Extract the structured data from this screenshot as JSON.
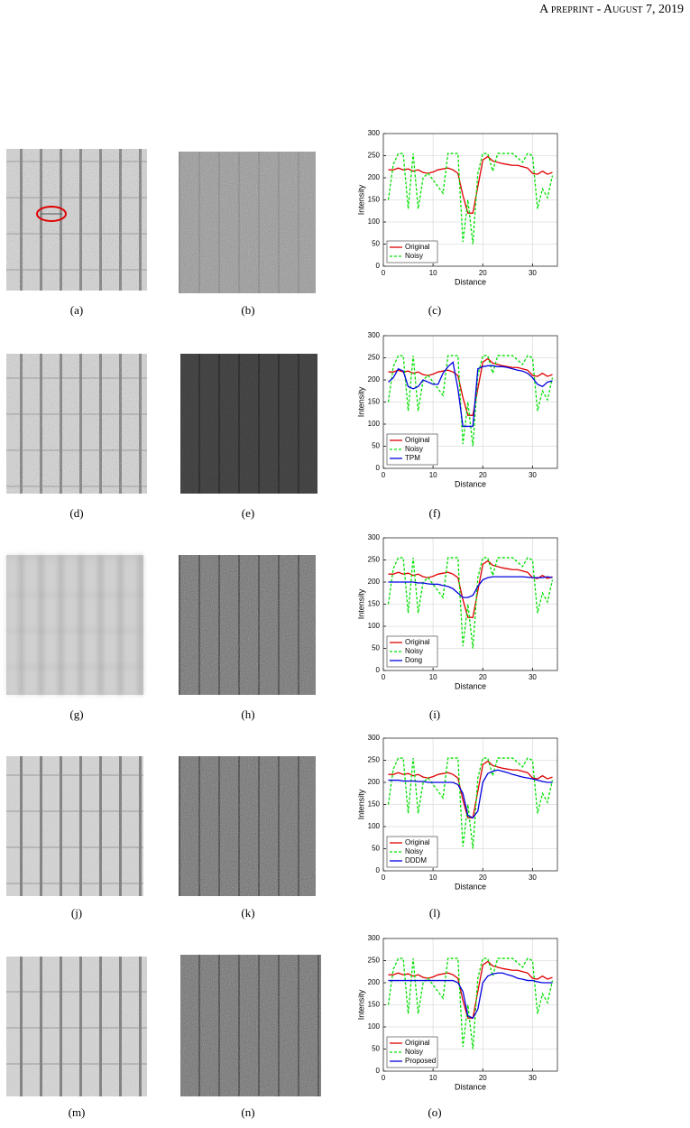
{
  "header": {
    "running_title": "A preprint - August 7, 2019"
  },
  "captions": [
    "(a)",
    "(b)",
    "(c)",
    "(d)",
    "(e)",
    "(f)",
    "(g)",
    "(h)",
    "(i)",
    "(j)",
    "(k)",
    "(l)",
    "(m)",
    "(n)",
    "(o)"
  ],
  "chart_data": [
    {
      "type": "line",
      "xlabel": "Distance",
      "ylabel": "Intensity",
      "xlim": [
        0,
        35
      ],
      "ylim": [
        0,
        300
      ],
      "xticks": [
        0,
        10,
        20,
        30
      ],
      "yticks": [
        0,
        50,
        100,
        150,
        200,
        250,
        300
      ],
      "grid": true,
      "legend": "lower-left",
      "x": [
        1,
        2,
        3,
        4,
        5,
        6,
        7,
        8,
        9,
        10,
        11,
        12,
        13,
        14,
        15,
        16,
        17,
        18,
        19,
        20,
        21,
        22,
        23,
        24,
        25,
        26,
        27,
        28,
        29,
        30,
        31,
        32,
        33,
        34
      ],
      "series": [
        {
          "name": "Original",
          "color": "#e00000",
          "style": "solid",
          "values": [
            218,
            218,
            222,
            218,
            220,
            215,
            218,
            212,
            210,
            213,
            218,
            220,
            222,
            218,
            210,
            160,
            120,
            120,
            180,
            240,
            248,
            238,
            235,
            232,
            230,
            228,
            228,
            225,
            222,
            210,
            208,
            215,
            208,
            212
          ]
        },
        {
          "name": "Noisy",
          "color": "#00e000",
          "style": "dashed",
          "values": [
            150,
            230,
            255,
            255,
            130,
            255,
            130,
            200,
            210,
            195,
            180,
            165,
            255,
            255,
            255,
            55,
            150,
            50,
            210,
            255,
            255,
            215,
            255,
            255,
            255,
            255,
            245,
            235,
            255,
            250,
            130,
            175,
            155,
            205
          ]
        }
      ]
    },
    {
      "type": "line",
      "xlabel": "Distance",
      "ylabel": "Intensity",
      "xlim": [
        0,
        35
      ],
      "ylim": [
        0,
        300
      ],
      "xticks": [
        0,
        10,
        20,
        30
      ],
      "yticks": [
        0,
        50,
        100,
        150,
        200,
        250,
        300
      ],
      "grid": true,
      "legend": "lower-left",
      "x": [
        1,
        2,
        3,
        4,
        5,
        6,
        7,
        8,
        9,
        10,
        11,
        12,
        13,
        14,
        15,
        16,
        17,
        18,
        19,
        20,
        21,
        22,
        23,
        24,
        25,
        26,
        27,
        28,
        29,
        30,
        31,
        32,
        33,
        34
      ],
      "series": [
        {
          "name": "Original",
          "color": "#e00000",
          "style": "solid",
          "values": [
            218,
            218,
            222,
            218,
            220,
            215,
            218,
            212,
            210,
            213,
            218,
            220,
            222,
            218,
            210,
            160,
            120,
            120,
            180,
            240,
            248,
            238,
            235,
            232,
            230,
            228,
            228,
            225,
            222,
            210,
            208,
            215,
            208,
            212
          ]
        },
        {
          "name": "Noisy",
          "color": "#00e000",
          "style": "dashed",
          "values": [
            150,
            230,
            255,
            255,
            130,
            255,
            130,
            200,
            210,
            195,
            180,
            165,
            255,
            255,
            255,
            55,
            150,
            50,
            210,
            255,
            255,
            215,
            255,
            255,
            255,
            255,
            245,
            235,
            255,
            250,
            130,
            175,
            155,
            205
          ]
        },
        {
          "name": "TPM",
          "color": "#0000e0",
          "style": "solid",
          "values": [
            195,
            205,
            225,
            220,
            185,
            180,
            185,
            200,
            195,
            190,
            190,
            215,
            230,
            240,
            180,
            95,
            95,
            95,
            225,
            230,
            232,
            232,
            230,
            230,
            228,
            225,
            222,
            220,
            215,
            205,
            190,
            185,
            195,
            198
          ]
        }
      ]
    },
    {
      "type": "line",
      "xlabel": "Distance",
      "ylabel": "Intensity",
      "xlim": [
        0,
        35
      ],
      "ylim": [
        0,
        300
      ],
      "xticks": [
        0,
        10,
        20,
        30
      ],
      "yticks": [
        0,
        50,
        100,
        150,
        200,
        250,
        300
      ],
      "grid": true,
      "legend": "lower-left",
      "x": [
        1,
        2,
        3,
        4,
        5,
        6,
        7,
        8,
        9,
        10,
        11,
        12,
        13,
        14,
        15,
        16,
        17,
        18,
        19,
        20,
        21,
        22,
        23,
        24,
        25,
        26,
        27,
        28,
        29,
        30,
        31,
        32,
        33,
        34
      ],
      "series": [
        {
          "name": "Original",
          "color": "#e00000",
          "style": "solid",
          "values": [
            218,
            218,
            222,
            218,
            220,
            215,
            218,
            212,
            210,
            213,
            218,
            220,
            222,
            218,
            210,
            160,
            120,
            120,
            180,
            240,
            248,
            238,
            235,
            232,
            230,
            228,
            228,
            225,
            222,
            210,
            208,
            215,
            208,
            212
          ]
        },
        {
          "name": "Noisy",
          "color": "#00e000",
          "style": "dashed",
          "values": [
            150,
            230,
            255,
            255,
            130,
            255,
            130,
            200,
            210,
            195,
            180,
            165,
            255,
            255,
            255,
            55,
            150,
            50,
            210,
            255,
            255,
            215,
            255,
            255,
            255,
            255,
            245,
            235,
            255,
            250,
            130,
            175,
            155,
            205
          ]
        },
        {
          "name": "Dong",
          "color": "#0000e0",
          "style": "solid",
          "values": [
            200,
            200,
            200,
            200,
            200,
            200,
            198,
            198,
            196,
            195,
            195,
            192,
            190,
            185,
            175,
            165,
            165,
            170,
            190,
            205,
            210,
            212,
            212,
            212,
            212,
            212,
            212,
            212,
            211,
            210,
            210,
            210,
            212,
            210
          ]
        }
      ]
    },
    {
      "type": "line",
      "xlabel": "Distance",
      "ylabel": "Intensity",
      "xlim": [
        0,
        35
      ],
      "ylim": [
        0,
        300
      ],
      "xticks": [
        0,
        10,
        20,
        30
      ],
      "yticks": [
        0,
        50,
        100,
        150,
        200,
        250,
        300
      ],
      "grid": true,
      "legend": "lower-left",
      "x": [
        1,
        2,
        3,
        4,
        5,
        6,
        7,
        8,
        9,
        10,
        11,
        12,
        13,
        14,
        15,
        16,
        17,
        18,
        19,
        20,
        21,
        22,
        23,
        24,
        25,
        26,
        27,
        28,
        29,
        30,
        31,
        32,
        33,
        34
      ],
      "series": [
        {
          "name": "Original",
          "color": "#e00000",
          "style": "solid",
          "values": [
            218,
            218,
            222,
            218,
            220,
            215,
            218,
            212,
            210,
            213,
            218,
            220,
            222,
            218,
            210,
            160,
            120,
            120,
            180,
            240,
            248,
            238,
            235,
            232,
            230,
            228,
            228,
            225,
            222,
            210,
            208,
            215,
            208,
            212
          ]
        },
        {
          "name": "Noisy",
          "color": "#00e000",
          "style": "dashed",
          "values": [
            150,
            230,
            255,
            255,
            130,
            255,
            130,
            200,
            210,
            195,
            180,
            165,
            255,
            255,
            255,
            55,
            150,
            50,
            210,
            255,
            255,
            215,
            255,
            255,
            255,
            255,
            245,
            235,
            255,
            250,
            130,
            175,
            155,
            205
          ]
        },
        {
          "name": "DDDM",
          "color": "#0000e0",
          "style": "solid",
          "values": [
            205,
            205,
            205,
            203,
            203,
            203,
            202,
            202,
            200,
            200,
            200,
            200,
            200,
            200,
            195,
            175,
            125,
            120,
            135,
            200,
            220,
            225,
            228,
            225,
            222,
            218,
            215,
            212,
            210,
            208,
            205,
            202,
            200,
            200
          ]
        }
      ]
    },
    {
      "type": "line",
      "xlabel": "Distance",
      "ylabel": "Intensity",
      "xlim": [
        0,
        35
      ],
      "ylim": [
        0,
        300
      ],
      "xticks": [
        0,
        10,
        20,
        30
      ],
      "yticks": [
        0,
        50,
        100,
        150,
        200,
        250,
        300
      ],
      "grid": true,
      "legend": "lower-left",
      "x": [
        1,
        2,
        3,
        4,
        5,
        6,
        7,
        8,
        9,
        10,
        11,
        12,
        13,
        14,
        15,
        16,
        17,
        18,
        19,
        20,
        21,
        22,
        23,
        24,
        25,
        26,
        27,
        28,
        29,
        30,
        31,
        32,
        33,
        34
      ],
      "series": [
        {
          "name": "Original",
          "color": "#e00000",
          "style": "solid",
          "values": [
            218,
            218,
            222,
            218,
            220,
            215,
            218,
            212,
            210,
            213,
            218,
            220,
            222,
            218,
            210,
            160,
            120,
            120,
            180,
            240,
            248,
            238,
            235,
            232,
            230,
            228,
            228,
            225,
            222,
            210,
            208,
            215,
            208,
            212
          ]
        },
        {
          "name": "Noisy",
          "color": "#00e000",
          "style": "dashed",
          "values": [
            150,
            230,
            255,
            255,
            130,
            255,
            130,
            200,
            210,
            195,
            180,
            165,
            255,
            255,
            255,
            55,
            150,
            50,
            210,
            255,
            255,
            215,
            255,
            255,
            255,
            255,
            245,
            235,
            255,
            250,
            130,
            175,
            155,
            205
          ]
        },
        {
          "name": "Proposed",
          "color": "#0000e0",
          "style": "solid",
          "values": [
            205,
            205,
            205,
            205,
            205,
            205,
            205,
            205,
            205,
            205,
            205,
            205,
            205,
            205,
            200,
            180,
            125,
            120,
            140,
            200,
            215,
            220,
            222,
            222,
            218,
            215,
            210,
            208,
            205,
            205,
            202,
            200,
            200,
            200
          ]
        }
      ]
    }
  ]
}
